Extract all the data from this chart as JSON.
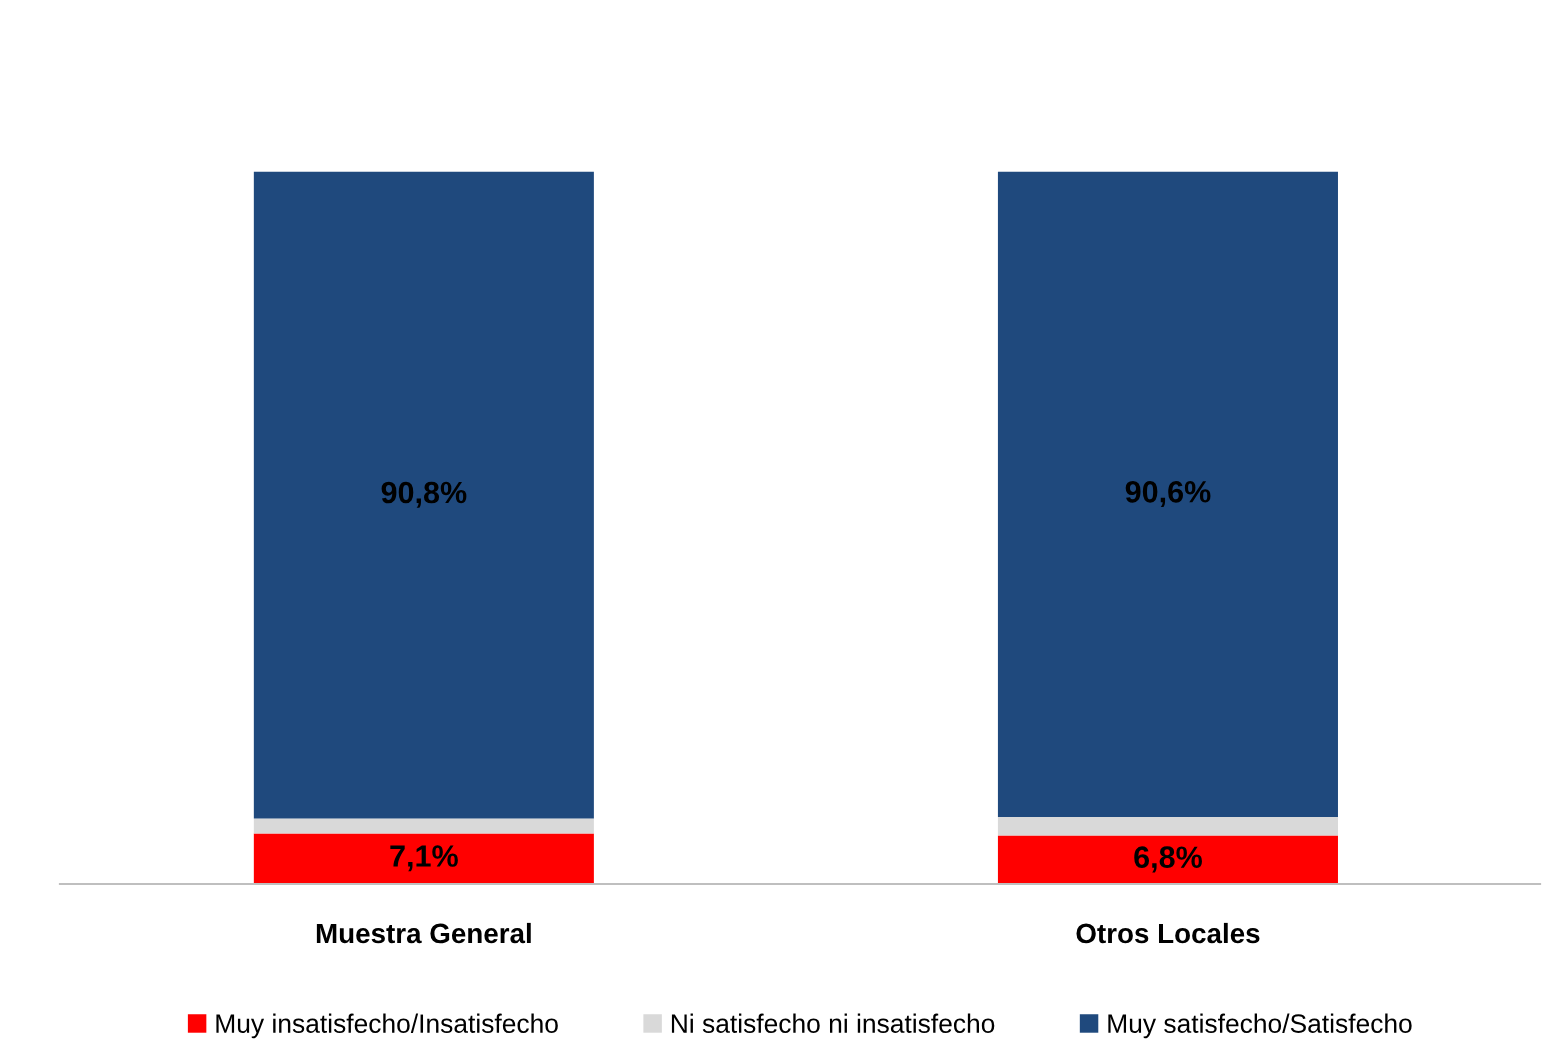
{
  "chart_data": {
    "type": "bar",
    "stacked": true,
    "categories": [
      "Muestra General",
      "Otros Locales"
    ],
    "series": [
      {
        "name": "Muy insatisfecho/Insatisfecho",
        "color": "#ff0000",
        "values": [
          7.1,
          6.8
        ],
        "value_labels": [
          "7,1%",
          "6,8%"
        ]
      },
      {
        "name": "Ni satisfecho ni insatisfecho",
        "color": "#d9d9d9",
        "values": [
          2.1,
          2.6
        ],
        "value_labels": [
          null,
          null
        ]
      },
      {
        "name": "Muy satisfecho/Satisfecho",
        "color": "#1f497d",
        "values": [
          90.8,
          90.6
        ],
        "value_labels": [
          "90,8%",
          "90,6%"
        ]
      }
    ],
    "legend": "bottom",
    "grid": false
  }
}
